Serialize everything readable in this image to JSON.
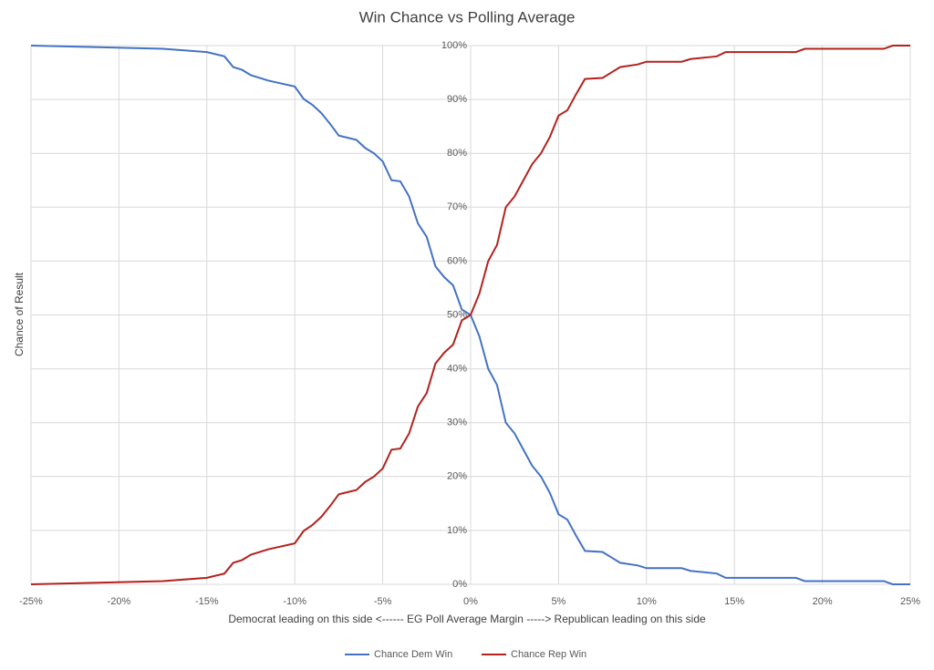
{
  "chart_data": {
    "type": "line",
    "title": "Win Chance vs Polling Average",
    "x_label": "Democrat leading on this side <------ EG Poll Average Margin -----> Republican leading on this side",
    "y_label": "Chance of Result",
    "x": [
      -25,
      -17.5,
      -15,
      -14,
      -13.5,
      -13,
      -12.5,
      -11.5,
      -10,
      -9.5,
      -9,
      -8.5,
      -8,
      -7.5,
      -6.5,
      -6,
      -5.5,
      -5,
      -4.5,
      -4,
      -3.5,
      -3,
      -2.5,
      -2,
      -1.5,
      -1,
      -0.5,
      0,
      0.5,
      1,
      1.5,
      2,
      2.5,
      3,
      3.5,
      4,
      4.5,
      5,
      5.5,
      6,
      6.5,
      7.5,
      8,
      8.5,
      9.5,
      10,
      12,
      12.5,
      14,
      14.5,
      18.5,
      19,
      23.5,
      24,
      25
    ],
    "series": [
      {
        "name": "Chance Dem Win",
        "color": "#4472c4",
        "values": [
          100,
          99.4,
          98.8,
          98,
          96,
          95.5,
          94.5,
          93.5,
          92.4,
          90.1,
          89,
          87.5,
          85.5,
          83.3,
          82.5,
          81,
          80,
          78.5,
          75,
          74.8,
          72,
          67,
          64.5,
          59,
          57,
          55.5,
          51,
          50,
          46,
          40,
          37,
          30,
          28,
          25,
          22,
          20,
          17,
          13,
          12,
          9,
          6.2,
          6,
          5,
          4,
          3.5,
          3,
          3,
          2.5,
          2,
          1.2,
          1.2,
          0.6,
          0.6,
          0,
          0
        ]
      },
      {
        "name": "Chance Rep Win",
        "color": "#b2221e",
        "values": [
          0,
          0.6,
          1.2,
          2,
          4,
          4.5,
          5.5,
          6.5,
          7.6,
          9.9,
          11,
          12.5,
          14.5,
          16.7,
          17.5,
          19,
          20,
          21.5,
          25,
          25.2,
          28,
          33,
          35.5,
          41,
          43,
          44.5,
          49,
          50,
          54,
          60,
          63,
          70,
          72,
          75,
          78,
          80,
          83,
          87,
          88,
          91,
          93.8,
          94,
          95,
          96,
          96.5,
          97,
          97,
          97.5,
          98,
          98.8,
          98.8,
          99.4,
          99.4,
          100,
          100
        ]
      }
    ],
    "xlim": [
      -25,
      25
    ],
    "xticks": [
      {
        "value": -25,
        "label": "-25%"
      },
      {
        "value": -20,
        "label": "-20%"
      },
      {
        "value": -15,
        "label": "-15%"
      },
      {
        "value": -10,
        "label": "-10%"
      },
      {
        "value": -5,
        "label": "-5%"
      },
      {
        "value": 0,
        "label": "0%"
      },
      {
        "value": 5,
        "label": "5%"
      },
      {
        "value": 10,
        "label": "10%"
      },
      {
        "value": 15,
        "label": "15%"
      },
      {
        "value": 20,
        "label": "20%"
      },
      {
        "value": 25,
        "label": "25%"
      }
    ],
    "ylim": [
      0,
      100
    ],
    "yticks": [
      {
        "value": 0,
        "label": "0%"
      },
      {
        "value": 10,
        "label": "10%"
      },
      {
        "value": 20,
        "label": "20%"
      },
      {
        "value": 30,
        "label": "30%"
      },
      {
        "value": 40,
        "label": "40%"
      },
      {
        "value": 50,
        "label": "50%"
      },
      {
        "value": 60,
        "label": "60%"
      },
      {
        "value": 70,
        "label": "70%"
      },
      {
        "value": 80,
        "label": "80%"
      },
      {
        "value": 90,
        "label": "90%"
      },
      {
        "value": 100,
        "label": "100%"
      }
    ],
    "grid": true,
    "legend": "bottom"
  }
}
